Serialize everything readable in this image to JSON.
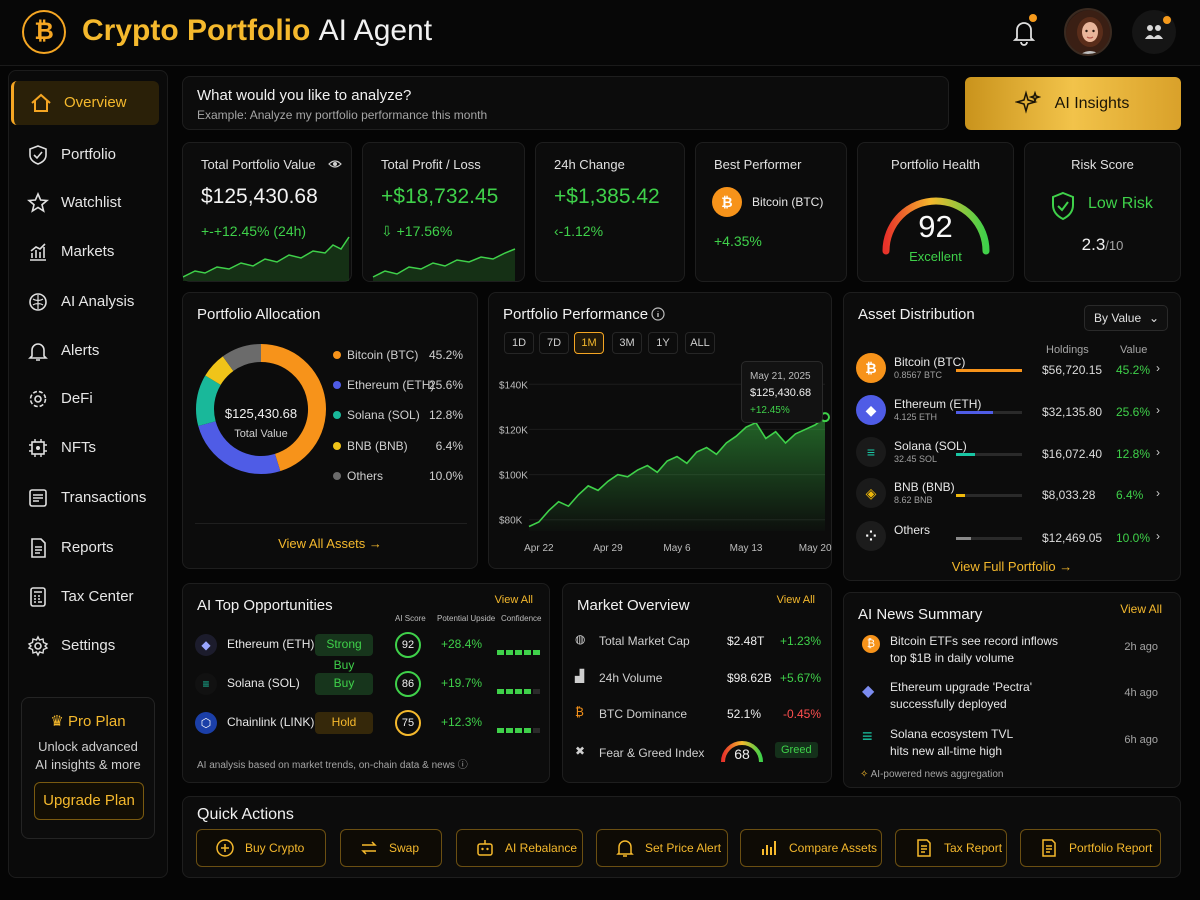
{
  "header": {
    "title_gold": "Crypto Portfolio",
    "title_white": "AI Agent",
    "logo_symbol": "₿"
  },
  "sidebar": {
    "items": [
      {
        "label": "Overview",
        "icon": "home-icon"
      },
      {
        "label": "Portfolio",
        "icon": "shield-icon"
      },
      {
        "label": "Watchlist",
        "icon": "star-icon"
      },
      {
        "label": "Markets",
        "icon": "chart-icon"
      },
      {
        "label": "AI Analysis",
        "icon": "brain-icon"
      },
      {
        "label": "Alerts",
        "icon": "bell-icon"
      },
      {
        "label": "DeFi",
        "icon": "gear-icon"
      },
      {
        "label": "NFTs",
        "icon": "chip-icon"
      },
      {
        "label": "Transactions",
        "icon": "list-icon"
      },
      {
        "label": "Reports",
        "icon": "document-icon"
      },
      {
        "label": "Tax Center",
        "icon": "calculator-icon"
      },
      {
        "label": "Settings",
        "icon": "settings-icon"
      }
    ],
    "pro": {
      "title": "Pro Plan",
      "desc1": "Unlock advanced",
      "desc2": "AI insights & more",
      "button": "Upgrade Plan"
    }
  },
  "query": {
    "prompt": "What would you like to analyze?",
    "example": "Example: Analyze my portfolio performance this month",
    "insights_button": "AI Insights"
  },
  "stats": {
    "total_value": {
      "label": "Total Portfolio Value",
      "value": "$125,430.68",
      "change": "+12.45% (24h)",
      "change_icon": "+-"
    },
    "profit": {
      "label": "Total Profit / Loss",
      "value": "+$18,732.45",
      "change": "+17.56%",
      "change_icon": "⇩"
    },
    "change24": {
      "label": "24h Change",
      "value": "+$1,385.42",
      "change": "1.12%",
      "change_icon": "‹-"
    },
    "best": {
      "label": "Best Performer",
      "name": "Bitcoin (BTC)",
      "change": "+4.35%"
    },
    "health": {
      "label": "Portfolio Health",
      "score": "92",
      "status": "Excellent"
    },
    "risk": {
      "label": "Risk Score",
      "level": "Low Risk",
      "value": "2.3",
      "max": "/10"
    }
  },
  "allocation": {
    "title": "Portfolio Allocation",
    "center_value": "$125,430.68",
    "center_label": "Total Value",
    "items": [
      {
        "name": "Bitcoin (BTC)",
        "pct": "45.2%",
        "share": 45.2,
        "color": "#f7931a"
      },
      {
        "name": "Ethereum (ETH)",
        "pct": "25.6%",
        "share": 25.6,
        "color": "#4f5ce6"
      },
      {
        "name": "Solana (SOL)",
        "pct": "12.8%",
        "share": 12.8,
        "color": "#19b89a"
      },
      {
        "name": "BNB (BNB)",
        "pct": "6.4%",
        "share": 6.4,
        "color": "#f0c419"
      },
      {
        "name": "Others",
        "pct": "10.0%",
        "share": 10.0,
        "color": "#6b6b6b"
      }
    ],
    "link": "View All Assets →"
  },
  "performance": {
    "title": "Portfolio Performance",
    "timeframes": [
      "1D",
      "7D",
      "1M",
      "3M",
      "1Y",
      "ALL"
    ],
    "selected": "1M",
    "tooltip": {
      "date": "May 21, 2025",
      "value": "$125,430.68",
      "change": "+12.45%"
    }
  },
  "chart_data": {
    "type": "area",
    "x": [
      "Apr 21",
      "Apr 22",
      "Apr 23",
      "Apr 24",
      "Apr 25",
      "Apr 26",
      "Apr 27",
      "Apr 28",
      "Apr 29",
      "Apr 30",
      "May 1",
      "May 2",
      "May 3",
      "May 4",
      "May 5",
      "May 6",
      "May 7",
      "May 8",
      "May 9",
      "May 10",
      "May 11",
      "May 12",
      "May 13",
      "May 14",
      "May 15",
      "May 16",
      "May 17",
      "May 18",
      "May 19",
      "May 20",
      "May 21"
    ],
    "values": [
      77000,
      79000,
      84000,
      88000,
      86000,
      91000,
      95000,
      93000,
      97000,
      100000,
      99000,
      102000,
      104000,
      101000,
      106000,
      108000,
      105000,
      110000,
      112000,
      109000,
      114000,
      117000,
      121000,
      123000,
      116000,
      119000,
      114000,
      118000,
      120000,
      122000,
      125430
    ],
    "x_tick_labels": [
      "Apr 22",
      "Apr 29",
      "May 6",
      "May 13",
      "May 20"
    ],
    "y_tick_labels": [
      "$140K",
      "$120K",
      "$100K",
      "$80K"
    ],
    "ylim": [
      75000,
      145000
    ]
  },
  "distribution": {
    "title": "Asset Distribution",
    "dropdown": "By Value",
    "col_holdings": "Holdings",
    "col_value": "Value",
    "assets": [
      {
        "name": "Bitcoin (BTC)",
        "sub": "0.8567 BTC",
        "value": "$56,720.15",
        "pct": "45.2%",
        "share": 45.2,
        "color": "#f7931a",
        "icon": "bitcoin-icon",
        "sym": "₿"
      },
      {
        "name": "Ethereum (ETH)",
        "sub": "4.125 ETH",
        "value": "$32,135.80",
        "pct": "25.6%",
        "share": 25.6,
        "color": "#4f5ce6",
        "icon": "ethereum-icon",
        "sym": "◆"
      },
      {
        "name": "Solana (SOL)",
        "sub": "32.45 SOL",
        "value": "$16,072.40",
        "pct": "12.8%",
        "share": 12.8,
        "color": "#19c6a4",
        "icon": "solana-icon",
        "sym": "≡"
      },
      {
        "name": "BNB (BNB)",
        "sub": "8.62 BNB",
        "value": "$8,033.28",
        "pct": "6.4%",
        "share": 6.4,
        "color": "#f0b90b",
        "icon": "bnb-icon",
        "sym": "◈"
      },
      {
        "name": "Others",
        "sub": "",
        "value": "$12,469.05",
        "pct": "10.0%",
        "share": 10.0,
        "color": "#8a8a8a",
        "icon": "others-icon",
        "sym": "⁘"
      }
    ],
    "link": "View Full Portfolio →"
  },
  "opportunities": {
    "title": "AI Top Opportunities",
    "view_all": "View All",
    "col_score": "AI Score",
    "col_upside": "Potential Upside",
    "col_conf": "Confidence",
    "items": [
      {
        "name": "Ethereum (ETH)",
        "badge": "Strong Buy",
        "score": "92",
        "upside": "+28.4%",
        "icon": "ethereum-icon",
        "sym": "◆",
        "conf": 5
      },
      {
        "name": "Solana (SOL)",
        "badge": "Buy",
        "score": "86",
        "upside": "+19.7%",
        "icon": "solana-icon",
        "sym": "≡",
        "conf": 4
      },
      {
        "name": "Chainlink (LINK)",
        "badge": "Hold",
        "score": "75",
        "upside": "+12.3%",
        "icon": "chainlink-icon",
        "sym": "⬡",
        "conf": 4
      }
    ],
    "footnote": "AI analysis based on market trends, on-chain data & news"
  },
  "market": {
    "title": "Market Overview",
    "view_all": "View All",
    "rows": [
      {
        "label": "Total Market Cap",
        "v1": "$2.48T",
        "v2": "+1.23%",
        "icon": "globe-icon",
        "pos": true
      },
      {
        "label": "24h Volume",
        "v1": "$98.62B",
        "v2": "+5.67%",
        "icon": "volume-icon",
        "pos": true
      },
      {
        "label": "BTC Dominance",
        "v1": "52.1%",
        "v2": "-0.45%",
        "icon": "bitcoin-icon",
        "pos": false
      }
    ],
    "fear": {
      "label": "Fear & Greed Index",
      "value": "68",
      "status": "Greed"
    }
  },
  "news": {
    "title": "AI News Summary",
    "view_all": "View All",
    "items": [
      {
        "l1": "Bitcoin ETFs see record inflows",
        "l2": "top $1B in daily volume",
        "ago": "2h ago",
        "icon": "bitcoin-icon"
      },
      {
        "l1": "Ethereum upgrade 'Pectra'",
        "l2": "successfully deployed",
        "ago": "4h ago",
        "icon": "ethereum-icon"
      },
      {
        "l1": "Solana ecosystem TVL",
        "l2": "hits new all-time high",
        "ago": "6h ago",
        "icon": "solana-icon"
      }
    ],
    "footer": "AI-powered news aggregation"
  },
  "quick_actions": {
    "title": "Quick Actions",
    "items": [
      "Buy Crypto",
      "Swap",
      "AI Rebalance",
      "Set Price Alert",
      "Compare Assets",
      "Tax Report",
      "Portfolio Report"
    ]
  }
}
